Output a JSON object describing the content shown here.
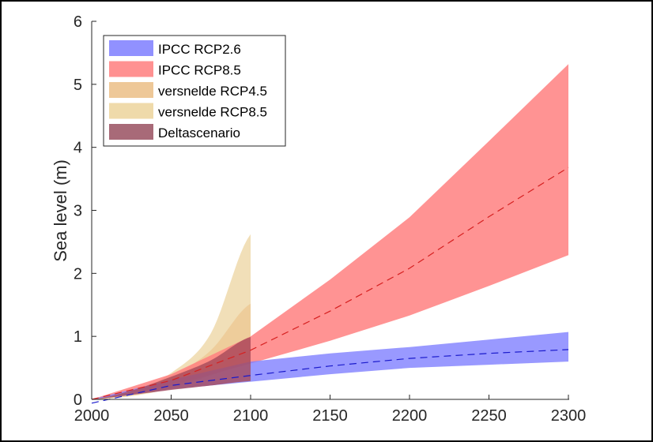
{
  "chart_data": {
    "type": "area",
    "title": "",
    "xlabel": "",
    "ylabel": "Sea level (m)",
    "xlim": [
      2000,
      2300
    ],
    "ylim": [
      0,
      6
    ],
    "xticks": [
      "2000",
      "2050",
      "2100",
      "2150",
      "2200",
      "2250",
      "2300"
    ],
    "yticks": [
      "0",
      "1",
      "2",
      "3",
      "4",
      "5",
      "6"
    ],
    "grid": false,
    "legend_position": "top-left",
    "series": [
      {
        "name": "IPCC RCP2.6",
        "color": "#8080ff",
        "line_color": "#1a1acc",
        "x": [
          2000,
          2050,
          2100,
          2150,
          2200,
          2250,
          2300
        ],
        "lower": [
          0.0,
          0.16,
          0.28,
          0.4,
          0.5,
          0.55,
          0.6
        ],
        "upper": [
          0.0,
          0.31,
          0.6,
          0.73,
          0.83,
          0.95,
          1.07
        ],
        "median": [
          -0.06,
          0.22,
          0.38,
          0.53,
          0.65,
          0.73,
          0.79
        ]
      },
      {
        "name": "IPCC RCP8.5",
        "color": "#ff8080",
        "line_color": "#d62020",
        "x": [
          2000,
          2050,
          2100,
          2150,
          2200,
          2250,
          2300
        ],
        "lower": [
          0.0,
          0.22,
          0.57,
          0.93,
          1.33,
          1.8,
          2.29
        ],
        "upper": [
          0.0,
          0.4,
          1.0,
          1.9,
          2.89,
          4.1,
          5.32
        ],
        "median": [
          0.0,
          0.3,
          0.78,
          1.4,
          2.08,
          2.9,
          3.68
        ]
      },
      {
        "name": "versnelde RCP4.5",
        "color": "#eec894",
        "x": [
          2000,
          2025,
          2050,
          2075,
          2100
        ],
        "lower": [
          0.0,
          0.08,
          0.2,
          0.38,
          0.6
        ],
        "upper": [
          0.0,
          0.12,
          0.36,
          0.78,
          1.52
        ]
      },
      {
        "name": "versnelde RCP8.5",
        "color": "#efd9ac",
        "x": [
          2000,
          2025,
          2050,
          2075,
          2100
        ],
        "lower": [
          0.0,
          0.05,
          0.18,
          0.4,
          0.7
        ],
        "upper": [
          0.0,
          0.13,
          0.42,
          1.05,
          2.62
        ]
      },
      {
        "name": "Deltascenario",
        "color": "#a54a5a",
        "x": [
          2000,
          2025,
          2050,
          2075,
          2100
        ],
        "lower": [
          0.0,
          0.07,
          0.15,
          0.22,
          0.29
        ],
        "upper": [
          0.0,
          0.14,
          0.36,
          0.62,
          0.99
        ]
      }
    ]
  }
}
